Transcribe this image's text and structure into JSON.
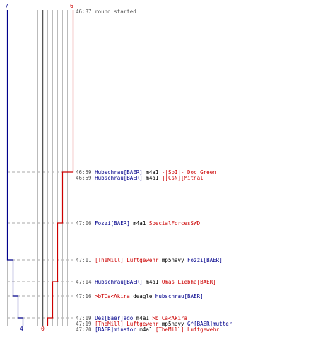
{
  "scores": {
    "top_left": "7",
    "top_right": "6",
    "bottom_blue": "4",
    "bottom_red": "0"
  },
  "colors": {
    "blue": "#00008b",
    "red": "#cc0000",
    "grid": "#bbbbbb",
    "center": "#555555",
    "dash": "#aaaaaa"
  },
  "events": [
    {
      "time": "46:37",
      "text": "round started"
    },
    {
      "time": "46:59",
      "killer": "Hubschrau[BAER]",
      "killer_team": "blue",
      "weapon": "m4a1",
      "victim": "-|SoI|- Doc Green",
      "victim_team": "red"
    },
    {
      "time": "46:59",
      "killer": "Hubschrau[BAER]",
      "killer_team": "blue",
      "weapon": "m4a1",
      "victim": "][CsN][Mitnal",
      "victim_team": "red"
    },
    {
      "time": "47:06",
      "killer": "Fozzi[BAER]",
      "killer_team": "blue",
      "weapon": "m4a1",
      "victim": "SpecialForcesSWD",
      "victim_team": "red"
    },
    {
      "time": "47:11",
      "killer": "[TheMill] Luftgewehr",
      "killer_team": "red",
      "weapon": "mp5navy",
      "victim": "Fozzi[BAER]",
      "victim_team": "blue"
    },
    {
      "time": "47:14",
      "killer": "Hubschrau[BAER]",
      "killer_team": "blue",
      "weapon": "m4a1",
      "victim": "Omas Liebha[BAER]",
      "victim_team": "red"
    },
    {
      "time": "47:16",
      "killer": ">bTCa<Akira",
      "killer_team": "red",
      "weapon": "deagle",
      "victim": "Hubschrau[BAER]",
      "victim_team": "blue"
    },
    {
      "time": "47:19",
      "killer": "Des[Baer]ado",
      "killer_team": "blue",
      "weapon": "m4a1",
      "victim": ">bTCa<Akira",
      "victim_team": "red"
    },
    {
      "time": "47:19",
      "killer": "[TheMill] Luftgewehr",
      "killer_team": "red",
      "weapon": "mp5navy",
      "victim": "G^[BAER]mutter",
      "victim_team": "blue"
    },
    {
      "time": "47:20",
      "killer": "[BAER]minator",
      "killer_team": "blue",
      "weapon": "m4a1",
      "victim": "[TheMill] Luftgewehr",
      "victim_team": "red"
    }
  ]
}
